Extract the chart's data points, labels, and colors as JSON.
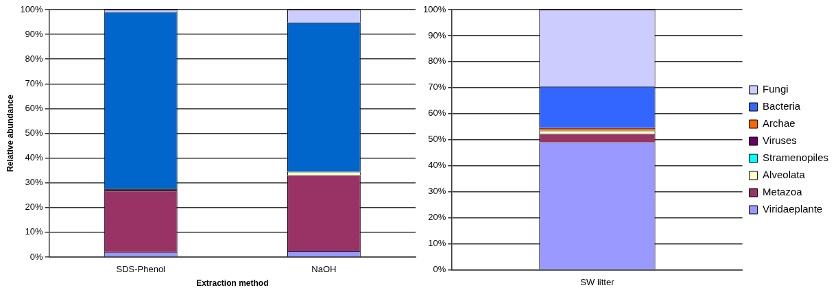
{
  "chart_data": [
    {
      "type": "bar",
      "stacked": true,
      "ylabel": "Relative abundance",
      "xlabel": "Extraction method",
      "categories": [
        "SDS-Phenol",
        "NaOH"
      ],
      "ylim": [
        0,
        100
      ],
      "yticks": [
        {
          "value": 0,
          "label": "0%"
        },
        {
          "value": 10,
          "label": "10%"
        },
        {
          "value": 20,
          "label": "20%"
        },
        {
          "value": 30,
          "label": "30%"
        },
        {
          "value": 40,
          "label": "40%"
        },
        {
          "value": 50,
          "label": "50%"
        },
        {
          "value": 60,
          "label": "60%"
        },
        {
          "value": 70,
          "label": "70%"
        },
        {
          "value": 80,
          "label": "80%"
        },
        {
          "value": 90,
          "label": "90%"
        },
        {
          "value": 100,
          "label": "100%"
        }
      ],
      "grid": "y",
      "legend": false,
      "series": [
        {
          "color": "#9999ff",
          "values": [
            2,
            2.5
          ]
        },
        {
          "color": "#993366",
          "values": [
            24.8,
            30.5
          ]
        },
        {
          "color": "#ffffcc",
          "values": [
            0,
            1.5
          ]
        },
        {
          "color": "#00ffff",
          "values": [
            0,
            null
          ]
        },
        {
          "color": "#1a0010",
          "values": [
            0.8,
            0
          ]
        },
        {
          "color": "#ff6600",
          "values": [
            0,
            null
          ]
        },
        {
          "color": "#0066cc",
          "values": [
            71.4,
            60.3
          ]
        },
        {
          "color": "#ccccff",
          "values": [
            1,
            5.2
          ]
        }
      ]
    },
    {
      "type": "bar",
      "stacked": true,
      "categories": [
        "SW litter"
      ],
      "ylim": [
        0,
        100
      ],
      "yticks": [
        {
          "value": 0,
          "label": "0%"
        },
        {
          "value": 10,
          "label": "10%"
        },
        {
          "value": 20,
          "label": "20%"
        },
        {
          "value": 30,
          "label": "30%"
        },
        {
          "value": 40,
          "label": "40%"
        },
        {
          "value": 50,
          "label": "50%"
        },
        {
          "value": 60,
          "label": "60%"
        },
        {
          "value": 70,
          "label": "70%"
        },
        {
          "value": 80,
          "label": "80%"
        },
        {
          "value": 90,
          "label": "90%"
        },
        {
          "value": 100,
          "label": "100%"
        }
      ],
      "grid": "y",
      "legend": "right",
      "series": [
        {
          "name": "Viridaeplante",
          "color": "#9999ff",
          "values": [
            49
          ]
        },
        {
          "name": "Metazoa",
          "color": "#993366",
          "values": [
            3.2
          ]
        },
        {
          "name": "Alveolata",
          "color": "#ffffcc",
          "values": [
            1.3
          ]
        },
        {
          "name": "Stramenopiles",
          "color": "#00ffff",
          "values": [
            0
          ]
        },
        {
          "name": "Viruses",
          "color": "#660066",
          "values": [
            null
          ]
        },
        {
          "name": "Archae",
          "color": "#ff6600",
          "values": [
            1.0
          ]
        },
        {
          "name": "Bacteria",
          "color": "#3366ff",
          "values": [
            15.9
          ]
        },
        {
          "name": "Fungi",
          "color": "#ccccff",
          "values": [
            29.6
          ]
        }
      ]
    }
  ]
}
